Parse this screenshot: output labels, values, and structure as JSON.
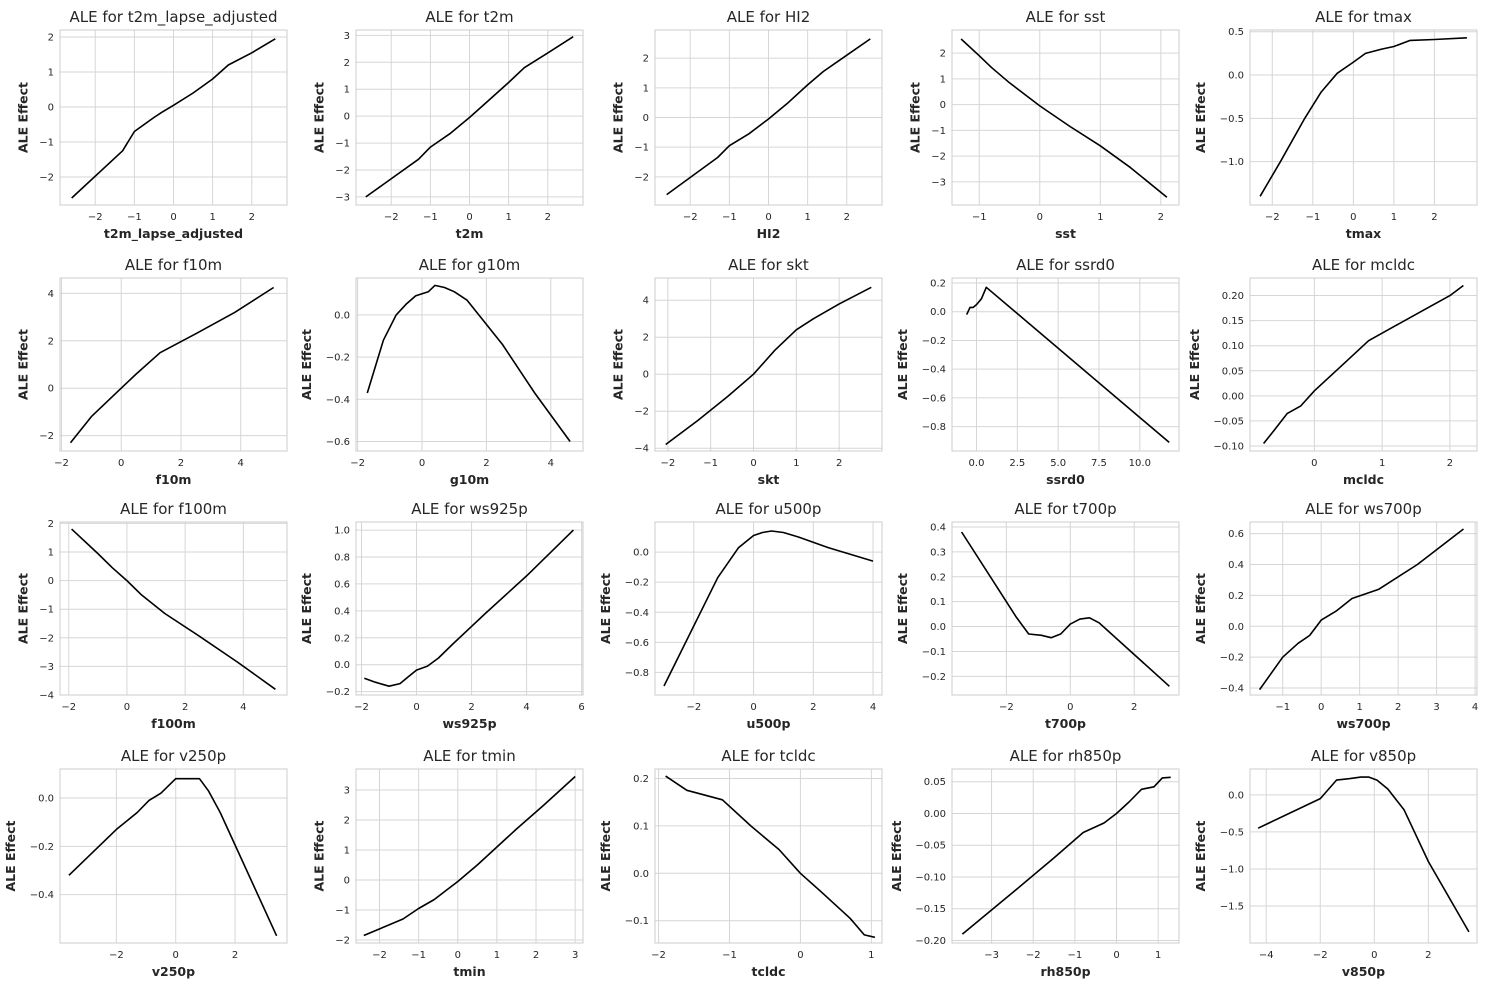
{
  "chart_data": [
    {
      "type": "line",
      "title": "ALE for t2m_lapse_adjusted",
      "xlabel": "t2m_lapse_adjusted",
      "ylabel": "ALE Effect",
      "xlim": [
        -2.9,
        2.9
      ],
      "ylim": [
        -2.8,
        2.2
      ],
      "xticks": [
        -2,
        -1,
        0,
        1,
        2
      ],
      "xtick_labels": [
        "−2",
        "−1",
        "0",
        "1",
        "2"
      ],
      "yticks": [
        -2,
        -1,
        0,
        1,
        2
      ],
      "ytick_labels": [
        "−2",
        "−1",
        "0",
        "1",
        "2"
      ],
      "x": [
        -2.6,
        -1.3,
        -1.0,
        -0.5,
        -0.3,
        0,
        0.5,
        1.0,
        1.4,
        2.0,
        2.6
      ],
      "y": [
        -2.6,
        -1.25,
        -0.7,
        -0.3,
        -0.15,
        0.05,
        0.4,
        0.8,
        1.2,
        1.55,
        1.95
      ]
    },
    {
      "type": "line",
      "title": "ALE for t2m",
      "xlabel": "t2m",
      "ylabel": "ALE Effect",
      "xlim": [
        -2.9,
        2.9
      ],
      "ylim": [
        -3.3,
        3.2
      ],
      "xticks": [
        -2,
        -1,
        0,
        1,
        2
      ],
      "xtick_labels": [
        "−2",
        "−1",
        "0",
        "1",
        "2"
      ],
      "yticks": [
        -3,
        -2,
        -1,
        0,
        1,
        2,
        3
      ],
      "ytick_labels": [
        "−3",
        "−2",
        "−1",
        "0",
        "1",
        "2",
        "3"
      ],
      "x": [
        -2.65,
        -1.3,
        -1.0,
        -0.5,
        0,
        0.5,
        1.0,
        1.4,
        2.0,
        2.65
      ],
      "y": [
        -3.0,
        -1.6,
        -1.15,
        -0.65,
        -0.05,
        0.6,
        1.25,
        1.8,
        2.35,
        2.95
      ]
    },
    {
      "type": "line",
      "title": "ALE for HI2",
      "xlabel": "HI2",
      "ylabel": "ALE Effect",
      "xlim": [
        -2.9,
        2.9
      ],
      "ylim": [
        -2.95,
        2.95
      ],
      "xticks": [
        -2,
        -1,
        0,
        1,
        2
      ],
      "xtick_labels": [
        "−2",
        "−1",
        "0",
        "1",
        "2"
      ],
      "yticks": [
        -2,
        -1,
        0,
        1,
        2
      ],
      "ytick_labels": [
        "−2",
        "−1",
        "0",
        "1",
        "2"
      ],
      "x": [
        -2.6,
        -1.3,
        -1.0,
        -0.5,
        0,
        0.5,
        1.0,
        1.4,
        2.0,
        2.6
      ],
      "y": [
        -2.6,
        -1.35,
        -0.95,
        -0.55,
        -0.05,
        0.5,
        1.1,
        1.55,
        2.1,
        2.65
      ]
    },
    {
      "type": "line",
      "title": "ALE for sst",
      "xlabel": "sst",
      "ylabel": "ALE Effect",
      "xlim": [
        -1.45,
        2.3
      ],
      "ylim": [
        -3.9,
        2.9
      ],
      "xticks": [
        -1,
        0,
        1,
        2
      ],
      "xtick_labels": [
        "−1",
        "0",
        "1",
        "2"
      ],
      "yticks": [
        -3,
        -2,
        -1,
        0,
        1,
        2
      ],
      "ytick_labels": [
        "−3",
        "−2",
        "−1",
        "0",
        "1",
        "2"
      ],
      "x": [
        -1.3,
        -1.0,
        -0.8,
        -0.5,
        0,
        0.5,
        1.0,
        1.5,
        2.1
      ],
      "y": [
        2.55,
        1.9,
        1.45,
        0.85,
        -0.05,
        -0.85,
        -1.6,
        -2.45,
        -3.6
      ]
    },
    {
      "type": "line",
      "title": "ALE for tmax",
      "xlabel": "tmax",
      "ylabel": "ALE Effect",
      "xlim": [
        -2.55,
        3.05
      ],
      "ylim": [
        -1.5,
        0.52
      ],
      "xticks": [
        -2,
        -1,
        0,
        1,
        2
      ],
      "xtick_labels": [
        "−2",
        "−1",
        "0",
        "1",
        "2"
      ],
      "yticks": [
        -1.0,
        -0.5,
        0.0,
        0.5
      ],
      "ytick_labels": [
        "−1.0",
        "−0.5",
        "0.0",
        "0.5"
      ],
      "x": [
        -2.3,
        -1.8,
        -1.2,
        -0.8,
        -0.4,
        0,
        0.3,
        0.7,
        1.0,
        1.4,
        2.0,
        2.8
      ],
      "y": [
        -1.4,
        -1.0,
        -0.5,
        -0.2,
        0.02,
        0.15,
        0.25,
        0.3,
        0.33,
        0.4,
        0.41,
        0.43
      ]
    },
    {
      "type": "line",
      "title": "ALE for f10m",
      "xlabel": "f10m",
      "ylabel": "ALE Effect",
      "xlim": [
        -2.05,
        5.55
      ],
      "ylim": [
        -2.65,
        4.65
      ],
      "xticks": [
        -2,
        0,
        2,
        4
      ],
      "xtick_labels": [
        "−2",
        "0",
        "2",
        "4"
      ],
      "yticks": [
        -2,
        0,
        2,
        4
      ],
      "ytick_labels": [
        "−2",
        "0",
        "2",
        "4"
      ],
      "x": [
        -1.7,
        -1.0,
        0,
        0.5,
        1.3,
        2.5,
        3.8,
        5.1
      ],
      "y": [
        -2.3,
        -1.2,
        0.0,
        0.6,
        1.5,
        2.3,
        3.2,
        4.25
      ]
    },
    {
      "type": "line",
      "title": "ALE for g10m",
      "xlabel": "g10m",
      "ylabel": "ALE Effect",
      "xlim": [
        -2.05,
        5.0
      ],
      "ylim": [
        -0.645,
        0.175
      ],
      "xticks": [
        -2,
        0,
        2,
        4
      ],
      "xtick_labels": [
        "−2",
        "0",
        "2",
        "4"
      ],
      "yticks": [
        -0.6,
        -0.4,
        -0.2,
        0.0
      ],
      "ytick_labels": [
        "−0.6",
        "−0.4",
        "−0.2",
        "0.0"
      ],
      "x": [
        -1.7,
        -1.2,
        -0.8,
        -0.5,
        -0.2,
        0,
        0.2,
        0.4,
        0.7,
        1.0,
        1.4,
        2.5,
        3.5,
        4.6
      ],
      "y": [
        -0.37,
        -0.12,
        0.0,
        0.05,
        0.09,
        0.1,
        0.11,
        0.14,
        0.13,
        0.11,
        0.07,
        -0.14,
        -0.37,
        -0.6
      ]
    },
    {
      "type": "line",
      "title": "ALE for skt",
      "xlabel": "skt",
      "ylabel": "ALE Effect",
      "xlim": [
        -2.3,
        3.0
      ],
      "ylim": [
        -4.15,
        5.2
      ],
      "xticks": [
        -2,
        -1,
        0,
        1,
        2
      ],
      "xtick_labels": [
        "−2",
        "−1",
        "0",
        "1",
        "2"
      ],
      "yticks": [
        -4,
        -2,
        0,
        2,
        4
      ],
      "ytick_labels": [
        "−4",
        "−2",
        "0",
        "2",
        "4"
      ],
      "x": [
        -2.05,
        -1.3,
        -0.6,
        0,
        0.5,
        1.0,
        1.4,
        2.0,
        2.75
      ],
      "y": [
        -3.8,
        -2.5,
        -1.2,
        0.0,
        1.3,
        2.4,
        3.0,
        3.8,
        4.7
      ]
    },
    {
      "type": "line",
      "title": "ALE for ssrd0",
      "xlabel": "ssrd0",
      "ylabel": "ALE Effect",
      "xlim": [
        -1.5,
        12.4
      ],
      "ylim": [
        -0.97,
        0.235
      ],
      "xticks": [
        0,
        2.5,
        5,
        7.5,
        10
      ],
      "xtick_labels": [
        "0.0",
        "2.5",
        "5.0",
        "7.5",
        "10.0"
      ],
      "yticks": [
        -0.8,
        -0.6,
        -0.4,
        -0.2,
        0.0,
        0.2
      ],
      "ytick_labels": [
        "−0.8",
        "−0.6",
        "−0.4",
        "−0.2",
        "0.0",
        "0.2"
      ],
      "x": [
        -0.6,
        -0.4,
        -0.2,
        0,
        0.3,
        0.6,
        11.8
      ],
      "y": [
        -0.02,
        0.03,
        0.03,
        0.05,
        0.09,
        0.17,
        -0.91
      ]
    },
    {
      "type": "line",
      "title": "ALE for mcldc",
      "xlabel": "mcldc",
      "ylabel": "ALE Effect",
      "xlim": [
        -0.95,
        2.4
      ],
      "ylim": [
        -0.11,
        0.235
      ],
      "xticks": [
        0,
        1,
        2
      ],
      "xtick_labels": [
        "0",
        "1",
        "2"
      ],
      "yticks": [
        -0.1,
        -0.05,
        0.0,
        0.05,
        0.1,
        0.15,
        0.2
      ],
      "ytick_labels": [
        "−0.10",
        "−0.05",
        "0.00",
        "0.05",
        "0.10",
        "0.15",
        "0.20"
      ],
      "x": [
        -0.75,
        -0.6,
        -0.4,
        -0.2,
        0,
        0.4,
        0.8,
        1.2,
        1.6,
        2.0,
        2.2
      ],
      "y": [
        -0.095,
        -0.07,
        -0.035,
        -0.02,
        0.01,
        0.06,
        0.11,
        0.14,
        0.17,
        0.2,
        0.22
      ]
    },
    {
      "type": "line",
      "title": "ALE for f100m",
      "xlabel": "f100m",
      "ylabel": "ALE Effect",
      "xlim": [
        -2.3,
        5.5
      ],
      "ylim": [
        -4.0,
        2.05
      ],
      "xticks": [
        -2,
        0,
        2,
        4
      ],
      "xtick_labels": [
        "−2",
        "0",
        "2",
        "4"
      ],
      "yticks": [
        -4,
        -3,
        -2,
        -1,
        0,
        1,
        2
      ],
      "ytick_labels": [
        "−4",
        "−3",
        "−2",
        "−1",
        "0",
        "1",
        "2"
      ],
      "x": [
        -1.9,
        -1.0,
        -0.5,
        0,
        0.5,
        1.3,
        2.5,
        3.8,
        5.1
      ],
      "y": [
        1.8,
        0.95,
        0.45,
        0.0,
        -0.5,
        -1.15,
        -1.95,
        -2.85,
        -3.8
      ]
    },
    {
      "type": "line",
      "title": "ALE for ws925p",
      "xlabel": "ws925p",
      "ylabel": "ALE Effect",
      "xlim": [
        -2.2,
        6.05
      ],
      "ylim": [
        -0.225,
        1.06
      ],
      "xticks": [
        -2,
        0,
        2,
        4,
        6
      ],
      "xtick_labels": [
        "−2",
        "0",
        "2",
        "4",
        "6"
      ],
      "yticks": [
        -0.2,
        0.0,
        0.2,
        0.4,
        0.6,
        0.8,
        1.0
      ],
      "ytick_labels": [
        "−0.2",
        "0.0",
        "0.2",
        "0.4",
        "0.6",
        "0.8",
        "1.0"
      ],
      "x": [
        -1.9,
        -1.5,
        -1.0,
        -0.6,
        -0.3,
        0,
        0.4,
        0.8,
        1.3,
        2.5,
        4.0,
        5.7
      ],
      "y": [
        -0.1,
        -0.13,
        -0.16,
        -0.14,
        -0.09,
        -0.04,
        -0.01,
        0.05,
        0.15,
        0.38,
        0.66,
        1.0
      ]
    },
    {
      "type": "line",
      "title": "ALE for u500p",
      "xlabel": "u500p",
      "ylabel": "ALE Effect",
      "xlim": [
        -3.3,
        4.3
      ],
      "ylim": [
        -0.95,
        0.2
      ],
      "xticks": [
        -2,
        0,
        2,
        4
      ],
      "xtick_labels": [
        "−2",
        "0",
        "2",
        "4"
      ],
      "yticks": [
        -0.8,
        -0.6,
        -0.4,
        -0.2,
        0.0
      ],
      "ytick_labels": [
        "−0.8",
        "−0.6",
        "−0.4",
        "−0.2",
        "0.0"
      ],
      "x": [
        -3.0,
        -1.2,
        -0.5,
        0,
        0.3,
        0.6,
        1.0,
        1.5,
        2.5,
        4.0
      ],
      "y": [
        -0.89,
        -0.17,
        0.03,
        0.11,
        0.13,
        0.14,
        0.13,
        0.1,
        0.03,
        -0.06
      ]
    },
    {
      "type": "line",
      "title": "ALE for t700p",
      "xlabel": "t700p",
      "ylabel": "ALE Effect",
      "xlim": [
        -3.7,
        3.4
      ],
      "ylim": [
        -0.275,
        0.42
      ],
      "xticks": [
        -2,
        0,
        2
      ],
      "xtick_labels": [
        "−2",
        "0",
        "2"
      ],
      "yticks": [
        -0.2,
        -0.1,
        0.0,
        0.1,
        0.2,
        0.3,
        0.4
      ],
      "ytick_labels": [
        "−0.2",
        "−0.1",
        "0.0",
        "0.1",
        "0.2",
        "0.3",
        "0.4"
      ],
      "x": [
        -3.4,
        -2.5,
        -1.7,
        -1.3,
        -0.9,
        -0.6,
        -0.3,
        0,
        0.3,
        0.6,
        0.9,
        1.2,
        3.1
      ],
      "y": [
        0.38,
        0.2,
        0.04,
        -0.03,
        -0.035,
        -0.045,
        -0.03,
        0.01,
        0.03,
        0.035,
        0.015,
        -0.02,
        -0.24
      ]
    },
    {
      "type": "line",
      "title": "ALE for ws700p",
      "xlabel": "ws700p",
      "ylabel": "ALE Effect",
      "xlim": [
        -1.85,
        4.05
      ],
      "ylim": [
        -0.445,
        0.675
      ],
      "xticks": [
        -1,
        0,
        1,
        2,
        3,
        4
      ],
      "xtick_labels": [
        "−1",
        "0",
        "1",
        "2",
        "3",
        "4"
      ],
      "yticks": [
        -0.4,
        -0.2,
        0.0,
        0.2,
        0.4,
        0.6
      ],
      "ytick_labels": [
        "−0.4",
        "−0.2",
        "0.0",
        "0.2",
        "0.4",
        "0.6"
      ],
      "x": [
        -1.6,
        -1.0,
        -0.6,
        -0.3,
        0,
        0.4,
        0.8,
        1.5,
        2.5,
        3.7
      ],
      "y": [
        -0.41,
        -0.2,
        -0.11,
        -0.06,
        0.04,
        0.1,
        0.18,
        0.24,
        0.4,
        0.63
      ]
    },
    {
      "type": "line",
      "title": "ALE for v250p",
      "xlabel": "v250p",
      "ylabel": "ALE Effect",
      "xlim": [
        -3.9,
        3.75
      ],
      "ylim": [
        -0.6,
        0.12
      ],
      "xticks": [
        -2,
        0,
        2
      ],
      "xtick_labels": [
        "−2",
        "0",
        "2"
      ],
      "yticks": [
        -0.4,
        -0.2,
        0.0
      ],
      "ytick_labels": [
        "−0.4",
        "−0.2",
        "0.0"
      ],
      "x": [
        -3.6,
        -2.0,
        -1.3,
        -0.9,
        -0.5,
        0,
        0.4,
        0.8,
        1.1,
        1.5,
        3.4
      ],
      "y": [
        -0.32,
        -0.13,
        -0.06,
        -0.01,
        0.02,
        0.08,
        0.08,
        0.08,
        0.03,
        -0.06,
        -0.57
      ]
    },
    {
      "type": "line",
      "title": "ALE for tmin",
      "xlabel": "tmin",
      "ylabel": "ALE Effect",
      "xlim": [
        -2.6,
        3.2
      ],
      "ylim": [
        -2.1,
        3.7
      ],
      "xticks": [
        -2,
        -1,
        0,
        1,
        2,
        3
      ],
      "xtick_labels": [
        "−2",
        "−1",
        "0",
        "1",
        "2",
        "3"
      ],
      "yticks": [
        -2,
        -1,
        0,
        1,
        2,
        3
      ],
      "ytick_labels": [
        "−2",
        "−1",
        "0",
        "1",
        "2",
        "3"
      ],
      "x": [
        -2.4,
        -1.4,
        -1.0,
        -0.6,
        -0.3,
        0,
        0.5,
        1.0,
        1.5,
        2.2,
        3.0
      ],
      "y": [
        -1.85,
        -1.3,
        -0.95,
        -0.65,
        -0.35,
        -0.05,
        0.5,
        1.1,
        1.7,
        2.5,
        3.45
      ]
    },
    {
      "type": "line",
      "title": "ALE for tcldc",
      "xlabel": "tcldc",
      "ylabel": "ALE Effect",
      "xlim": [
        -2.05,
        1.15
      ],
      "ylim": [
        -0.147,
        0.22
      ],
      "xticks": [
        -2,
        -1,
        0,
        1
      ],
      "xtick_labels": [
        "−2",
        "−1",
        "0",
        "1"
      ],
      "yticks": [
        -0.1,
        0.0,
        0.1,
        0.2
      ],
      "ytick_labels": [
        "−0.1",
        "0.0",
        "0.1",
        "0.2"
      ],
      "x": [
        -1.9,
        -1.6,
        -1.1,
        -0.7,
        -0.3,
        0,
        0.3,
        0.7,
        0.9,
        1.05
      ],
      "y": [
        0.205,
        0.175,
        0.155,
        0.1,
        0.05,
        0.0,
        -0.04,
        -0.095,
        -0.13,
        -0.135
      ]
    },
    {
      "type": "line",
      "title": "ALE for rh850p",
      "xlabel": "rh850p",
      "ylabel": "ALE Effect",
      "xlim": [
        -3.95,
        1.5
      ],
      "ylim": [
        -0.204,
        0.07
      ],
      "xticks": [
        -3,
        -2,
        -1,
        0,
        1
      ],
      "xtick_labels": [
        "−3",
        "−2",
        "−1",
        "0",
        "1"
      ],
      "yticks": [
        -0.2,
        -0.15,
        -0.1,
        -0.05,
        0.0,
        0.05
      ],
      "ytick_labels": [
        "−0.20",
        "−0.15",
        "−0.10",
        "−0.05",
        "0.00",
        "0.05"
      ],
      "x": [
        -3.7,
        -2.5,
        -1.5,
        -0.8,
        -0.3,
        0,
        0.3,
        0.6,
        0.9,
        1.1,
        1.3
      ],
      "y": [
        -0.19,
        -0.125,
        -0.07,
        -0.03,
        -0.015,
        0.0,
        0.018,
        0.038,
        0.042,
        0.056,
        0.057
      ]
    },
    {
      "type": "line",
      "title": "ALE for v850p",
      "xlabel": "v850p",
      "ylabel": "ALE Effect",
      "xlim": [
        -4.6,
        3.8
      ],
      "ylim": [
        -2.0,
        0.35
      ],
      "xticks": [
        -4,
        -2,
        0,
        2
      ],
      "xtick_labels": [
        "−4",
        "−2",
        "0",
        "2"
      ],
      "yticks": [
        -1.5,
        -1.0,
        -0.5,
        0.0
      ],
      "ytick_labels": [
        "−1.5",
        "−1.0",
        "−0.5",
        "0.0"
      ],
      "x": [
        -4.3,
        -2.0,
        -1.4,
        -0.9,
        -0.5,
        -0.2,
        0.1,
        0.5,
        1.1,
        2.0,
        3.5
      ],
      "y": [
        -0.45,
        -0.05,
        0.2,
        0.22,
        0.24,
        0.24,
        0.2,
        0.08,
        -0.2,
        -0.9,
        -1.85
      ]
    }
  ]
}
